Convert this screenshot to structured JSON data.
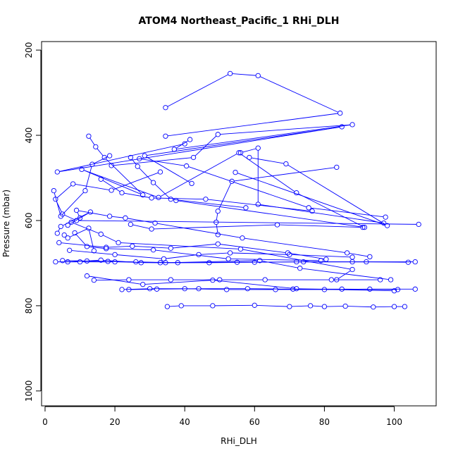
{
  "chart_data": {
    "type": "line",
    "title": "ATOM4 Northeast_Pacific_1 RHi_DLH",
    "xlabel": "RHi_DLH",
    "ylabel": "Pressure (mbar)",
    "xlim": [
      -1,
      112
    ],
    "ylim": [
      1035,
      180
    ],
    "x_ticks": [
      0,
      20,
      40,
      60,
      80,
      100
    ],
    "y_ticks": [
      200,
      400,
      600,
      800,
      1000
    ],
    "x_tick_labels": [
      "0",
      "20",
      "40",
      "60",
      "80",
      "100"
    ],
    "y_tick_labels": [
      "200",
      "400",
      "600",
      "800",
      "1000"
    ],
    "line_color": "#0000ff",
    "markers": "open-circle",
    "grid": false,
    "series": [
      {
        "x": [
          34.5,
          53,
          61,
          84.5,
          34.5
        ],
        "y": [
          335,
          255,
          260,
          348,
          402
        ]
      },
      {
        "x": [
          41.5,
          37,
          88,
          49.5,
          42.5,
          19
        ],
        "y": [
          410,
          433,
          375,
          398,
          452,
          471
        ]
      },
      {
        "x": [
          40,
          3.5,
          85,
          28.5,
          42
        ],
        "y": [
          420,
          486,
          380,
          448,
          513
        ]
      },
      {
        "x": [
          12.5,
          14.5,
          17,
          28,
          10.5,
          32.5,
          55.5,
          72,
          91.5,
          37.5
        ],
        "y": [
          402,
          427,
          452,
          540,
          480,
          546,
          441,
          535,
          616,
          553
        ]
      },
      {
        "x": [
          58.5,
          69,
          98,
          54.5
        ],
        "y": [
          452,
          467,
          612,
          487
        ]
      },
      {
        "x": [
          83.5,
          53.5,
          49.5,
          49,
          49.5
        ],
        "y": [
          475,
          508,
          578,
          604,
          633
        ]
      },
      {
        "x": [
          56,
          61,
          61,
          97
        ],
        "y": [
          441,
          430,
          562,
          606
        ]
      },
      {
        "x": [
          24.5,
          26.5,
          31,
          36,
          57.5
        ],
        "y": [
          452,
          473,
          511,
          550,
          570
        ]
      },
      {
        "x": [
          18.5,
          13.5,
          11.5,
          4.5,
          2.5
        ],
        "y": [
          448,
          468,
          530,
          590,
          530
        ]
      },
      {
        "x": [
          27,
          40.5,
          75.5,
          97.5
        ],
        "y": [
          455,
          472,
          570,
          592
        ]
      },
      {
        "x": [
          33,
          19,
          8,
          3,
          5,
          9,
          107
        ],
        "y": [
          486,
          529,
          514,
          550,
          585,
          600,
          609
        ]
      },
      {
        "x": [
          16,
          22,
          30.5,
          46,
          76.5
        ],
        "y": [
          503,
          535,
          547,
          550,
          578
        ]
      },
      {
        "x": [
          6.5,
          13,
          4.5,
          3.5
        ],
        "y": [
          611,
          580,
          614,
          630
        ]
      },
      {
        "x": [
          5.5,
          6.5,
          12.5,
          14
        ],
        "y": [
          634,
          641,
          618,
          671
        ]
      },
      {
        "x": [
          10,
          9,
          18.5,
          23,
          31.5,
          56.5,
          86.5,
          93
        ],
        "y": [
          594,
          576,
          590,
          594,
          606,
          641,
          676,
          685
        ]
      },
      {
        "x": [
          24.5,
          30.5,
          66.5,
          91
        ],
        "y": [
          609,
          620,
          610,
          616
        ]
      },
      {
        "x": [
          7.5,
          16,
          21,
          56,
          88,
          83.5
        ],
        "y": [
          604,
          632,
          652,
          667,
          715,
          739
        ]
      },
      {
        "x": [
          8.5,
          12,
          17.5,
          31,
          52.5,
          79
        ],
        "y": [
          629,
          661,
          666,
          669,
          690,
          694
        ]
      },
      {
        "x": [
          4,
          17.5,
          25,
          36,
          49.5,
          69.5,
          80.5
        ],
        "y": [
          652,
          663,
          660,
          665,
          655,
          676,
          691
        ]
      },
      {
        "x": [
          6.5,
          16,
          27.5,
          34.5,
          61.5,
          73,
          99
        ],
        "y": [
          697,
          693,
          699,
          699,
          694,
          712,
          739
        ]
      },
      {
        "x": [
          12,
          28,
          48,
          72,
          100
        ],
        "y": [
          730,
          750,
          740,
          760,
          765
        ]
      },
      {
        "x": [
          3,
          10,
          20,
          33,
          47,
          60,
          74,
          88,
          106
        ],
        "y": [
          697,
          697,
          697,
          699,
          699,
          698,
          697,
          697,
          697
        ]
      },
      {
        "x": [
          5,
          12,
          18,
          26,
          38,
          55,
          72,
          92,
          104
        ],
        "y": [
          694,
          695,
          696,
          697,
          699,
          698,
          697,
          697,
          698
        ]
      },
      {
        "x": [
          14,
          24,
          36,
          50,
          63,
          82,
          96
        ],
        "y": [
          740,
          739,
          739,
          739,
          739,
          739,
          739
        ]
      },
      {
        "x": [
          22,
          30,
          40,
          52,
          66,
          80,
          93,
          106
        ],
        "y": [
          762,
          760,
          760,
          762,
          762,
          762,
          761,
          761
        ]
      },
      {
        "x": [
          24,
          32,
          44,
          58,
          71,
          85,
          101
        ],
        "y": [
          762,
          761,
          760,
          760,
          761,
          761,
          762
        ]
      },
      {
        "x": [
          35,
          39,
          48,
          60,
          70,
          76,
          80,
          86,
          94,
          100,
          103
        ],
        "y": [
          802,
          800,
          800,
          799,
          802,
          800,
          802,
          801,
          803,
          802,
          802
        ]
      },
      {
        "x": [
          7,
          20,
          34,
          44,
          53,
          70,
          88
        ],
        "y": [
          670,
          680,
          690,
          680,
          676,
          680,
          686
        ]
      }
    ]
  }
}
